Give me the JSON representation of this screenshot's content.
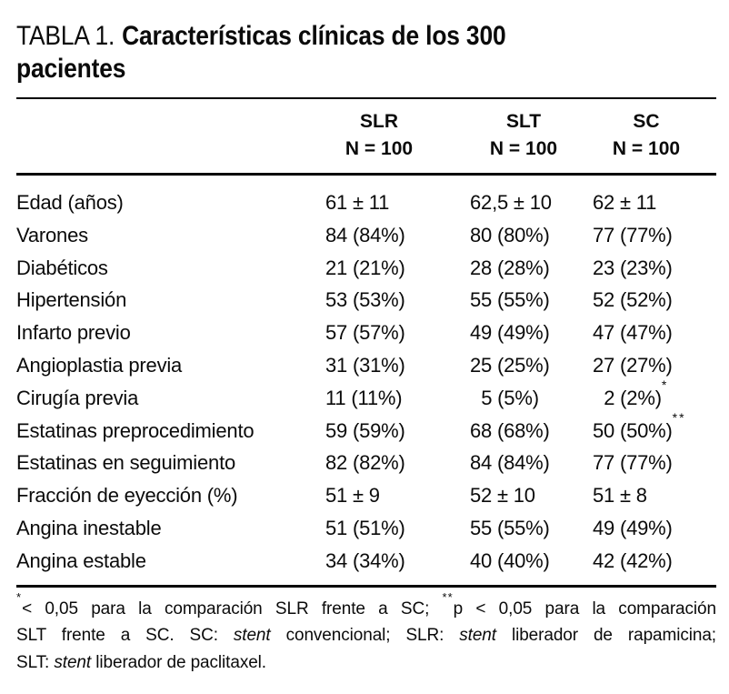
{
  "title": {
    "prefix": "TABLA 1.",
    "bold_line1": "Características clínicas de los 300",
    "bold_line2": "pacientes"
  },
  "table": {
    "columns": [
      {
        "name": "SLR",
        "n": "N = 100"
      },
      {
        "name": "SLT",
        "n": "N = 100"
      },
      {
        "name": "SC",
        "n": "N = 100"
      }
    ],
    "rows": [
      {
        "label": "Edad (años)",
        "values": [
          {
            "text": "61 ± 11"
          },
          {
            "text": "62,5 ± 10"
          },
          {
            "text": "62 ± 11"
          }
        ]
      },
      {
        "label": "Varones",
        "values": [
          {
            "text": "84 (84%)"
          },
          {
            "text": "80 (80%)"
          },
          {
            "text": "77 (77%)"
          }
        ]
      },
      {
        "label": "Diabéticos",
        "values": [
          {
            "text": "21 (21%)"
          },
          {
            "text": "28 (28%)"
          },
          {
            "text": "23 (23%)"
          }
        ]
      },
      {
        "label": "Hipertensión",
        "values": [
          {
            "text": "53 (53%)"
          },
          {
            "text": "55 (55%)"
          },
          {
            "text": "52 (52%)"
          }
        ]
      },
      {
        "label": "Infarto previo",
        "values": [
          {
            "text": "57 (57%)"
          },
          {
            "text": "49 (49%)"
          },
          {
            "text": "47 (47%)"
          }
        ]
      },
      {
        "label": "Angioplastia previa",
        "values": [
          {
            "text": "31 (31%)"
          },
          {
            "text": "25 (25%)"
          },
          {
            "text": "27 (27%)"
          }
        ]
      },
      {
        "label": "Cirugía previa",
        "values": [
          {
            "text": "11 (11%)"
          },
          {
            "text": "5 (5%)",
            "pad": 1
          },
          {
            "text": "2 (2%)",
            "pad": 1,
            "sup": "*"
          }
        ]
      },
      {
        "label": "Estatinas preprocedimiento",
        "values": [
          {
            "text": "59 (59%)"
          },
          {
            "text": "68 (68%)"
          },
          {
            "text": "50 (50%)",
            "sup": "**"
          }
        ]
      },
      {
        "label": "Estatinas en seguimiento",
        "values": [
          {
            "text": "82 (82%)"
          },
          {
            "text": "84 (84%)"
          },
          {
            "text": "77 (77%)"
          }
        ]
      },
      {
        "label": "Fracción de eyección (%)",
        "values": [
          {
            "text": "51 ± 9"
          },
          {
            "text": "52 ± 10"
          },
          {
            "text": "51 ± 8"
          }
        ]
      },
      {
        "label": "Angina inestable",
        "values": [
          {
            "text": "51 (51%)"
          },
          {
            "text": "55 (55%)"
          },
          {
            "text": "49 (49%)"
          }
        ]
      },
      {
        "label": "Angina estable",
        "values": [
          {
            "text": "34 (34%)"
          },
          {
            "text": "40 (40%)"
          },
          {
            "text": "42 (42%)"
          }
        ]
      }
    ]
  },
  "footnote": {
    "lines": [
      {
        "segments": [
          {
            "sup": "*"
          },
          {
            "t": "< 0,05 para la comparación SLR frente a SC; "
          },
          {
            "sup": "**"
          },
          {
            "t": "p < 0,05 para la comparación"
          }
        ]
      },
      {
        "segments": [
          {
            "t": "SLT frente a SC. SC: "
          },
          {
            "i": "stent"
          },
          {
            "t": " convencional; SLR: "
          },
          {
            "i": "stent"
          },
          {
            "t": " liberador de rapamicina;"
          }
        ]
      },
      {
        "segments": [
          {
            "t": "SLT: "
          },
          {
            "i": "stent"
          },
          {
            "t": " liberador de paclitaxel."
          }
        ]
      }
    ]
  }
}
